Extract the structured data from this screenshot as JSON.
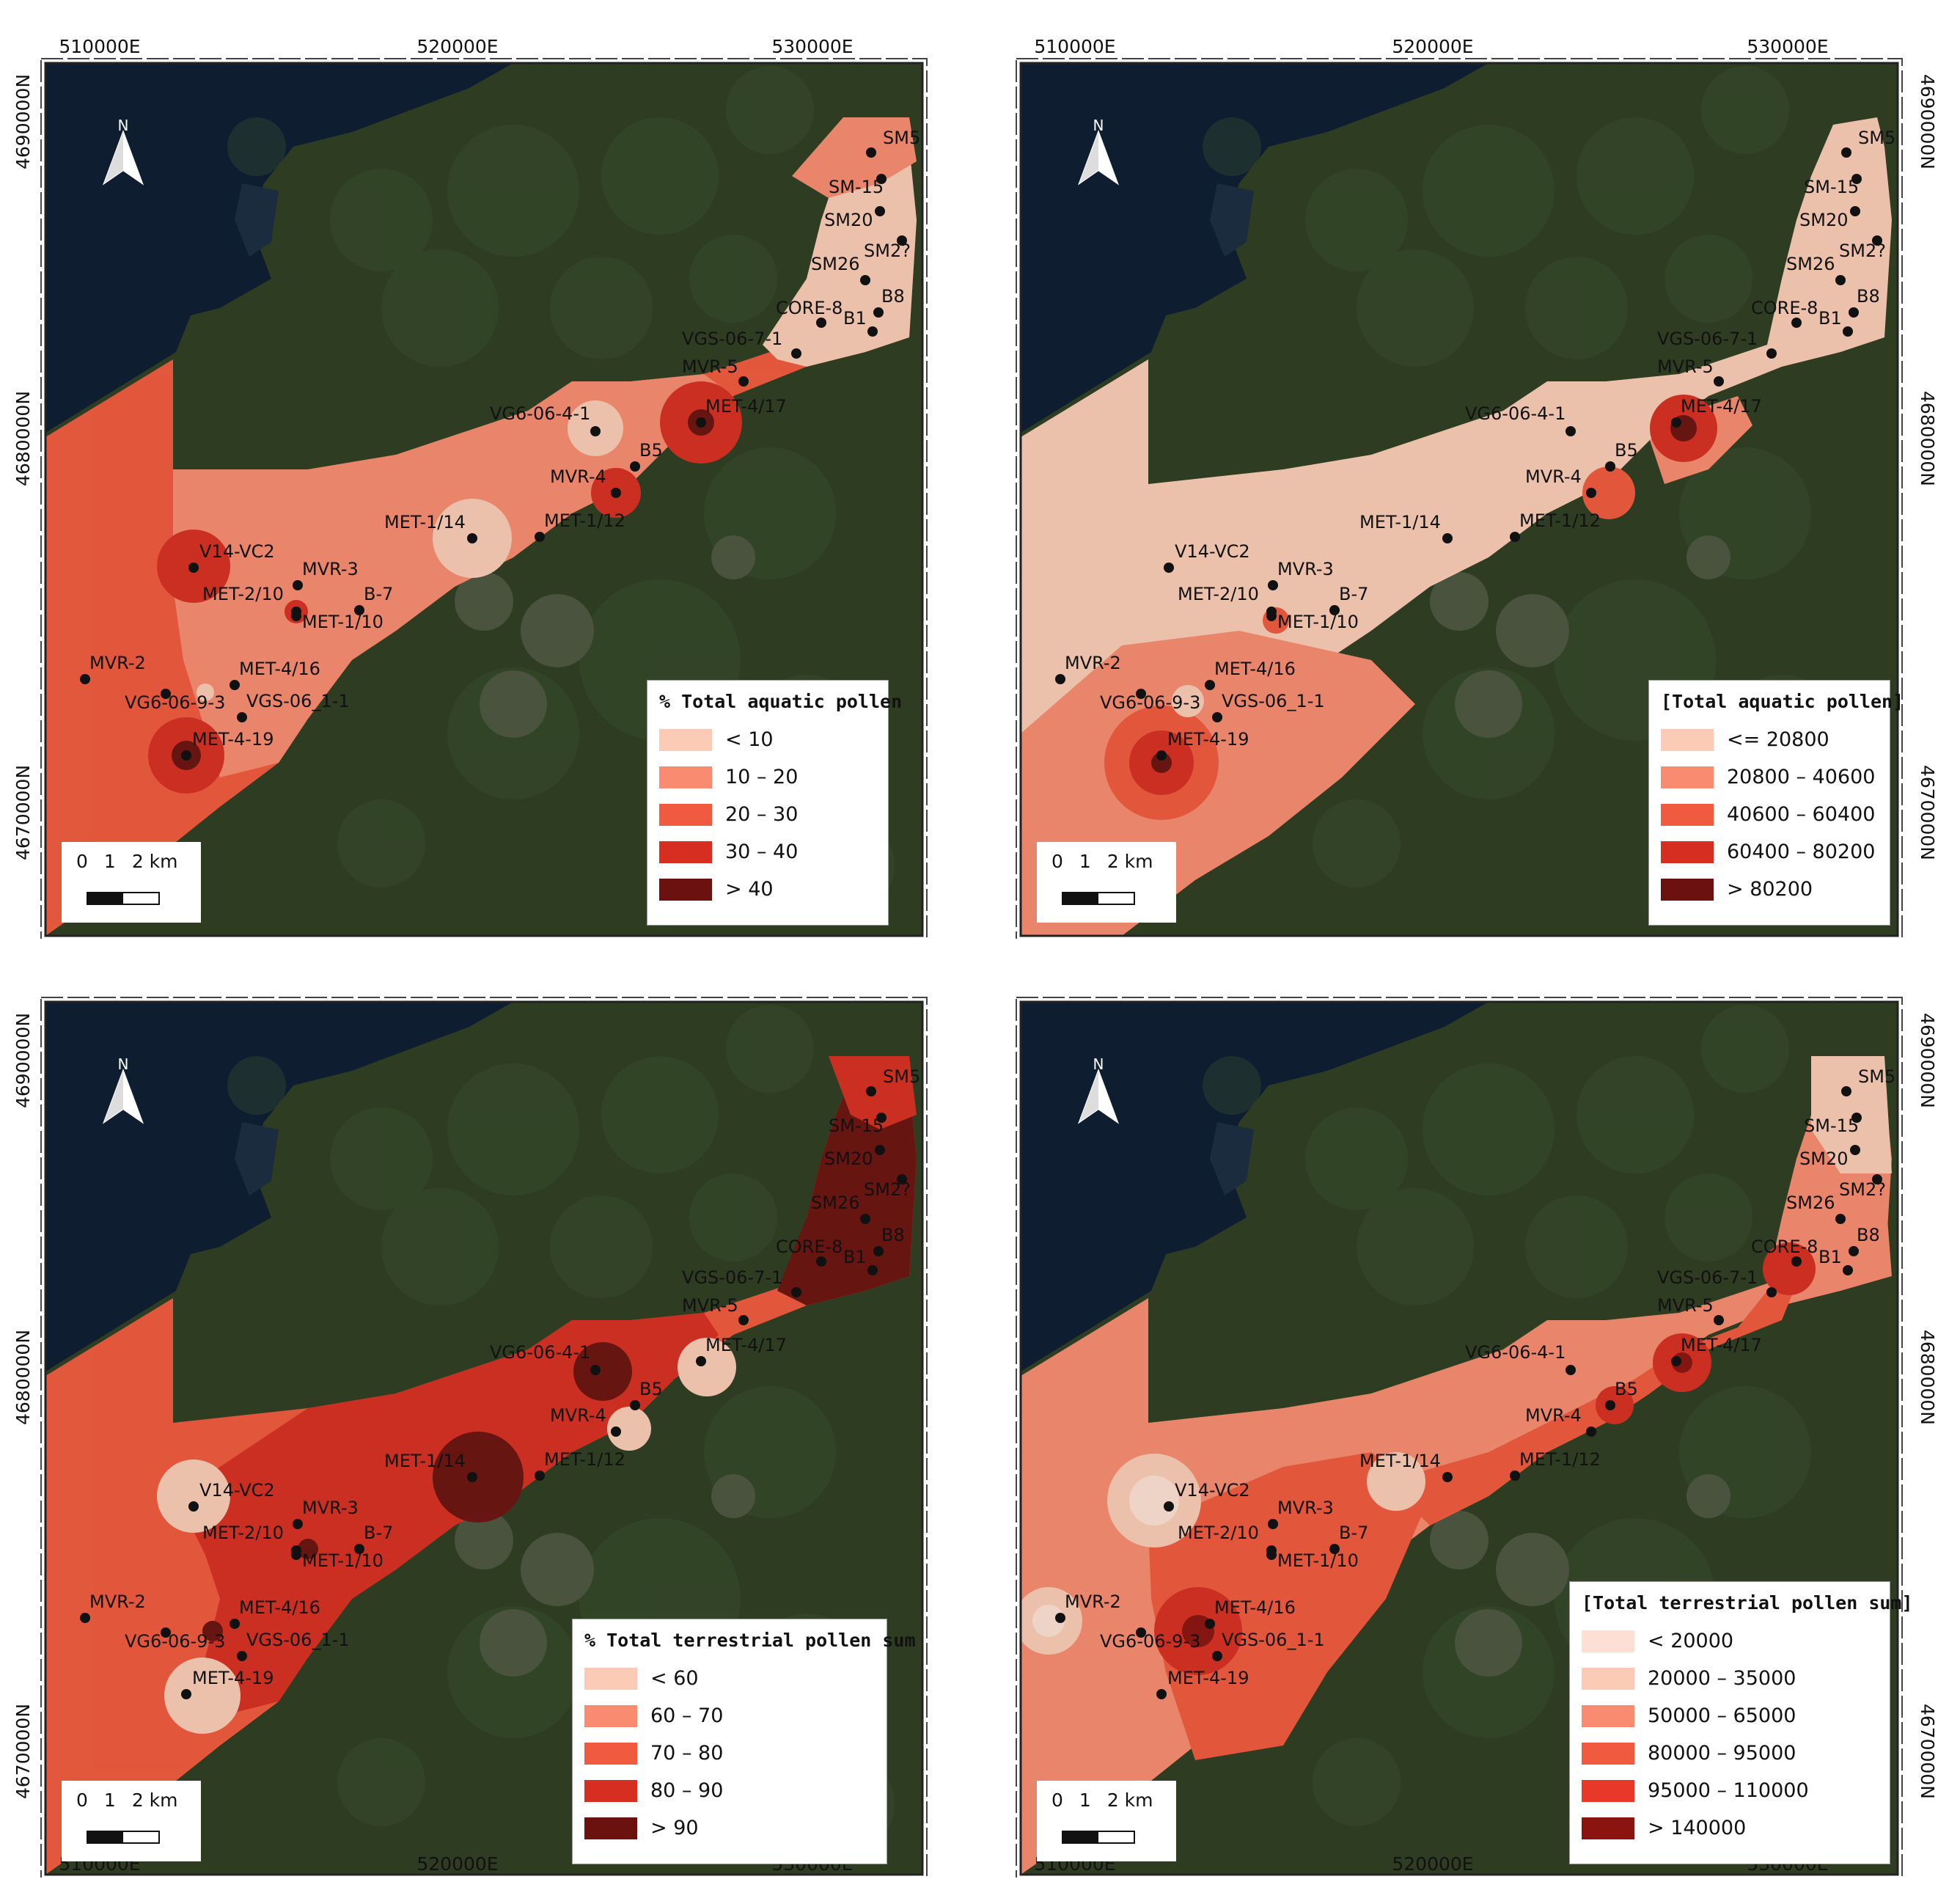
{
  "axes": {
    "x_ticks": [
      "510000E",
      "520000E",
      "530000E"
    ],
    "y_ticks": [
      "4690000N",
      "4680000N",
      "4670000N"
    ]
  },
  "north_arrow_label": "N",
  "scale": {
    "numbers": [
      "0",
      "1",
      "2 km"
    ]
  },
  "colors": {
    "sea": "#0e1e30",
    "land": "#2e3d22",
    "c1": "#fbcbb6",
    "c2": "#f88b70",
    "c3": "#f05a3f",
    "c4": "#d62f22",
    "c5": "#6b1210",
    "t1": "#fde0d3",
    "t6": "#8a1410"
  },
  "sites": [
    "SM5",
    "SM-15",
    "SM20",
    "SM26",
    "SM2?",
    "B8",
    "B1",
    "CORE-8",
    "VGS-06-7-1",
    "MVR-5",
    "MET-4/17",
    "VG6-06-4-1",
    "B5",
    "MVR-4",
    "MET-1/12",
    "MET-1/14",
    "V14-VC2",
    "MVR-3",
    "MET-2/10",
    "B-7",
    "MET-1/10",
    "MVR-2",
    "MET-4/16",
    "VG6-06-9-3",
    "VGS-06_1-1",
    "MET-4-19"
  ],
  "panels": [
    {
      "id": "aquatic-percent",
      "legend": {
        "title": "% Total aquatic pollen",
        "classes": [
          {
            "label": "< 10",
            "color": "#fbcbb6"
          },
          {
            "label": "10 – 20",
            "color": "#f88b70"
          },
          {
            "label": "20 – 30",
            "color": "#f05a3f"
          },
          {
            "label": "30 – 40",
            "color": "#d62f22"
          },
          {
            "label": "> 40",
            "color": "#6b1210"
          }
        ]
      }
    },
    {
      "id": "aquatic-total",
      "legend": {
        "title": "[Total aquatic pollen]",
        "classes": [
          {
            "label": "<= 20800",
            "color": "#fbcbb6"
          },
          {
            "label": "20800 – 40600",
            "color": "#f88b70"
          },
          {
            "label": "40600 – 60400",
            "color": "#f05a3f"
          },
          {
            "label": "60400 – 80200",
            "color": "#d62f22"
          },
          {
            "label": "> 80200",
            "color": "#6b1210"
          }
        ]
      }
    },
    {
      "id": "terrestrial-percent",
      "legend": {
        "title": "% Total terrestrial pollen sum",
        "classes": [
          {
            "label": "< 60",
            "color": "#fbcbb6"
          },
          {
            "label": "60 – 70",
            "color": "#f88b70"
          },
          {
            "label": "70 – 80",
            "color": "#f05a3f"
          },
          {
            "label": "80 – 90",
            "color": "#d62f22"
          },
          {
            "label": "> 90",
            "color": "#6b1210"
          }
        ]
      }
    },
    {
      "id": "terrestrial-total",
      "legend": {
        "title": "[Total terrestrial pollen sum]",
        "classes": [
          {
            "label": "< 20000",
            "color": "#fde0d3"
          },
          {
            "label": "20000 – 35000",
            "color": "#fbcbb6"
          },
          {
            "label": "50000 – 65000",
            "color": "#f88b70"
          },
          {
            "label": "80000 – 95000",
            "color": "#f05a3f"
          },
          {
            "label": "95000 – 110000",
            "color": "#e8382a"
          },
          {
            "label": "> 140000",
            "color": "#8a1410"
          }
        ]
      }
    }
  ]
}
